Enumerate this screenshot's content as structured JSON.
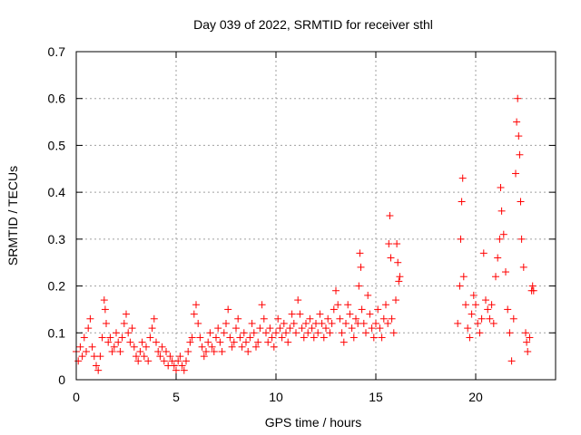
{
  "chart_data": {
    "type": "scatter",
    "title": "Day 039 of 2022, SRMTID for receiver sthl",
    "xlabel": "GPS time / hours",
    "ylabel": "SRMTID / TECUs",
    "xlim": [
      0,
      24
    ],
    "ylim": [
      0,
      0.7
    ],
    "x_ticks": [
      0,
      5,
      10,
      15,
      20
    ],
    "x_tick_labels": [
      "0",
      "5",
      "10",
      "15",
      "20"
    ],
    "y_ticks": [
      0,
      0.1,
      0.2,
      0.3,
      0.4,
      0.5,
      0.6,
      0.7
    ],
    "y_tick_labels": [
      "0",
      "0.1",
      "0.2",
      "0.3",
      "0.4",
      "0.5",
      "0.6",
      "0.7"
    ],
    "grid": true,
    "marker": "+",
    "colors": {
      "series": "#ff0000",
      "axes": "#000000",
      "grid": "#a0a0a0"
    },
    "series": [
      {
        "name": "SRMTID",
        "points": [
          [
            0.0,
            0.06
          ],
          [
            0.1,
            0.04
          ],
          [
            0.2,
            0.07
          ],
          [
            0.3,
            0.05
          ],
          [
            0.4,
            0.09
          ],
          [
            0.5,
            0.06
          ],
          [
            0.6,
            0.11
          ],
          [
            0.7,
            0.13
          ],
          [
            0.8,
            0.07
          ],
          [
            0.9,
            0.05
          ],
          [
            1.0,
            0.03
          ],
          [
            1.1,
            0.02
          ],
          [
            1.2,
            0.05
          ],
          [
            1.3,
            0.09
          ],
          [
            1.4,
            0.17
          ],
          [
            1.45,
            0.15
          ],
          [
            1.5,
            0.12
          ],
          [
            1.6,
            0.08
          ],
          [
            1.7,
            0.09
          ],
          [
            1.8,
            0.06
          ],
          [
            1.9,
            0.07
          ],
          [
            2.0,
            0.1
          ],
          [
            2.1,
            0.08
          ],
          [
            2.2,
            0.06
          ],
          [
            2.3,
            0.09
          ],
          [
            2.4,
            0.12
          ],
          [
            2.5,
            0.14
          ],
          [
            2.6,
            0.1
          ],
          [
            2.7,
            0.08
          ],
          [
            2.8,
            0.11
          ],
          [
            2.9,
            0.07
          ],
          [
            3.0,
            0.05
          ],
          [
            3.1,
            0.04
          ],
          [
            3.2,
            0.06
          ],
          [
            3.3,
            0.08
          ],
          [
            3.4,
            0.05
          ],
          [
            3.5,
            0.07
          ],
          [
            3.6,
            0.04
          ],
          [
            3.7,
            0.09
          ],
          [
            3.8,
            0.11
          ],
          [
            3.9,
            0.13
          ],
          [
            4.0,
            0.08
          ],
          [
            4.1,
            0.06
          ],
          [
            4.2,
            0.05
          ],
          [
            4.3,
            0.07
          ],
          [
            4.4,
            0.04
          ],
          [
            4.5,
            0.06
          ],
          [
            4.6,
            0.03
          ],
          [
            4.7,
            0.05
          ],
          [
            4.8,
            0.04
          ],
          [
            4.9,
            0.03
          ],
          [
            5.0,
            0.02
          ],
          [
            5.1,
            0.04
          ],
          [
            5.2,
            0.05
          ],
          [
            5.3,
            0.03
          ],
          [
            5.4,
            0.02
          ],
          [
            5.5,
            0.04
          ],
          [
            5.6,
            0.06
          ],
          [
            5.7,
            0.08
          ],
          [
            5.8,
            0.09
          ],
          [
            5.9,
            0.14
          ],
          [
            6.0,
            0.16
          ],
          [
            6.1,
            0.12
          ],
          [
            6.2,
            0.09
          ],
          [
            6.3,
            0.07
          ],
          [
            6.4,
            0.05
          ],
          [
            6.5,
            0.06
          ],
          [
            6.6,
            0.08
          ],
          [
            6.7,
            0.1
          ],
          [
            6.8,
            0.07
          ],
          [
            6.9,
            0.06
          ],
          [
            7.0,
            0.09
          ],
          [
            7.1,
            0.11
          ],
          [
            7.2,
            0.08
          ],
          [
            7.3,
            0.06
          ],
          [
            7.4,
            0.1
          ],
          [
            7.5,
            0.12
          ],
          [
            7.6,
            0.15
          ],
          [
            7.7,
            0.09
          ],
          [
            7.8,
            0.07
          ],
          [
            7.9,
            0.08
          ],
          [
            8.0,
            0.11
          ],
          [
            8.1,
            0.13
          ],
          [
            8.2,
            0.09
          ],
          [
            8.3,
            0.07
          ],
          [
            8.4,
            0.1
          ],
          [
            8.5,
            0.08
          ],
          [
            8.6,
            0.06
          ],
          [
            8.7,
            0.09
          ],
          [
            8.8,
            0.12
          ],
          [
            8.9,
            0.1
          ],
          [
            9.0,
            0.07
          ],
          [
            9.1,
            0.08
          ],
          [
            9.2,
            0.11
          ],
          [
            9.3,
            0.16
          ],
          [
            9.4,
            0.13
          ],
          [
            9.5,
            0.1
          ],
          [
            9.6,
            0.08
          ],
          [
            9.7,
            0.11
          ],
          [
            9.8,
            0.09
          ],
          [
            9.9,
            0.07
          ],
          [
            10.0,
            0.1
          ],
          [
            10.1,
            0.13
          ],
          [
            10.2,
            0.11
          ],
          [
            10.3,
            0.09
          ],
          [
            10.4,
            0.12
          ],
          [
            10.5,
            0.1
          ],
          [
            10.6,
            0.08
          ],
          [
            10.7,
            0.11
          ],
          [
            10.8,
            0.14
          ],
          [
            10.9,
            0.12
          ],
          [
            11.0,
            0.1
          ],
          [
            11.1,
            0.17
          ],
          [
            11.2,
            0.14
          ],
          [
            11.3,
            0.11
          ],
          [
            11.4,
            0.09
          ],
          [
            11.5,
            0.12
          ],
          [
            11.6,
            0.1
          ],
          [
            11.7,
            0.13
          ],
          [
            11.8,
            0.11
          ],
          [
            11.9,
            0.09
          ],
          [
            12.0,
            0.12
          ],
          [
            12.1,
            0.1
          ],
          [
            12.2,
            0.14
          ],
          [
            12.3,
            0.12
          ],
          [
            12.4,
            0.09
          ],
          [
            12.5,
            0.11
          ],
          [
            12.6,
            0.13
          ],
          [
            12.7,
            0.1
          ],
          [
            12.8,
            0.12
          ],
          [
            12.9,
            0.15
          ],
          [
            13.0,
            0.19
          ],
          [
            13.1,
            0.16
          ],
          [
            13.2,
            0.13
          ],
          [
            13.3,
            0.1
          ],
          [
            13.4,
            0.08
          ],
          [
            13.5,
            0.12
          ],
          [
            13.6,
            0.16
          ],
          [
            13.7,
            0.14
          ],
          [
            13.8,
            0.11
          ],
          [
            13.9,
            0.09
          ],
          [
            14.0,
            0.13
          ],
          [
            14.1,
            0.12
          ],
          [
            14.15,
            0.2
          ],
          [
            14.2,
            0.27
          ],
          [
            14.25,
            0.24
          ],
          [
            14.3,
            0.15
          ],
          [
            14.4,
            0.12
          ],
          [
            14.5,
            0.1
          ],
          [
            14.6,
            0.18
          ],
          [
            14.7,
            0.14
          ],
          [
            14.8,
            0.11
          ],
          [
            14.9,
            0.09
          ],
          [
            15.0,
            0.12
          ],
          [
            15.1,
            0.15
          ],
          [
            15.2,
            0.11
          ],
          [
            15.3,
            0.09
          ],
          [
            15.4,
            0.13
          ],
          [
            15.5,
            0.16
          ],
          [
            15.6,
            0.12
          ],
          [
            15.65,
            0.29
          ],
          [
            15.7,
            0.35
          ],
          [
            15.75,
            0.26
          ],
          [
            15.8,
            0.13
          ],
          [
            15.9,
            0.1
          ],
          [
            16.0,
            0.17
          ],
          [
            16.05,
            0.29
          ],
          [
            16.1,
            0.25
          ],
          [
            16.15,
            0.21
          ],
          [
            16.2,
            0.22
          ],
          [
            19.1,
            0.12
          ],
          [
            19.2,
            0.2
          ],
          [
            19.25,
            0.3
          ],
          [
            19.3,
            0.38
          ],
          [
            19.35,
            0.43
          ],
          [
            19.4,
            0.22
          ],
          [
            19.5,
            0.16
          ],
          [
            19.6,
            0.11
          ],
          [
            19.7,
            0.09
          ],
          [
            19.8,
            0.14
          ],
          [
            19.9,
            0.18
          ],
          [
            20.0,
            0.16
          ],
          [
            20.1,
            0.12
          ],
          [
            20.2,
            0.1
          ],
          [
            20.3,
            0.13
          ],
          [
            20.4,
            0.27
          ],
          [
            20.5,
            0.17
          ],
          [
            20.6,
            0.15
          ],
          [
            20.7,
            0.13
          ],
          [
            20.8,
            0.16
          ],
          [
            20.9,
            0.12
          ],
          [
            21.0,
            0.22
          ],
          [
            21.1,
            0.26
          ],
          [
            21.2,
            0.3
          ],
          [
            21.25,
            0.41
          ],
          [
            21.3,
            0.36
          ],
          [
            21.4,
            0.31
          ],
          [
            21.5,
            0.23
          ],
          [
            21.6,
            0.15
          ],
          [
            21.7,
            0.1
          ],
          [
            21.8,
            0.04
          ],
          [
            21.9,
            0.13
          ],
          [
            22.0,
            0.44
          ],
          [
            22.05,
            0.55
          ],
          [
            22.1,
            0.6
          ],
          [
            22.15,
            0.52
          ],
          [
            22.2,
            0.48
          ],
          [
            22.25,
            0.38
          ],
          [
            22.3,
            0.3
          ],
          [
            22.4,
            0.24
          ],
          [
            22.5,
            0.1
          ],
          [
            22.55,
            0.08
          ],
          [
            22.6,
            0.06
          ],
          [
            22.7,
            0.09
          ],
          [
            22.8,
            0.19
          ],
          [
            22.85,
            0.2
          ],
          [
            22.9,
            0.19
          ]
        ]
      }
    ]
  }
}
